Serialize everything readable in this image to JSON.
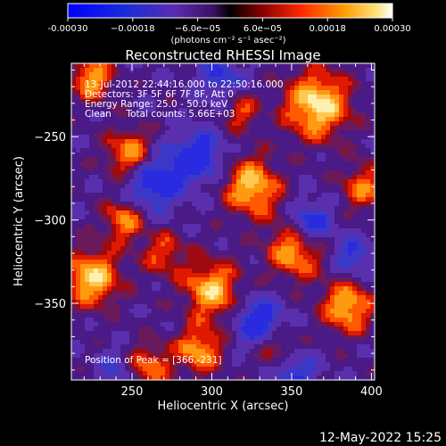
{
  "chart_data": {
    "type": "heatmap",
    "title": "Reconstructed RHESSI Image",
    "xlabel": "Heliocentric X (arcsec)",
    "ylabel": "Heliocentric Y (arcsec)",
    "xlim": [
      212,
      402
    ],
    "ylim": [
      -396,
      -206
    ],
    "x_ticks": [
      250,
      300,
      350,
      400
    ],
    "y_ticks": [
      -250,
      -300,
      -350
    ],
    "x_tick_labels": [
      "250",
      "300",
      "350",
      "400"
    ],
    "y_tick_labels": [
      "−250",
      "−300",
      "−350"
    ],
    "colorbar": {
      "range": [
        -0.0003,
        0.0003
      ],
      "tick_labels": [
        "-0.00030",
        "−0.00018",
        "−6.0e−05",
        "6.0e−05",
        "0.00018",
        "0.00030"
      ],
      "unit_label": "(photons cm⁻² s⁻¹ asec⁻²)"
    },
    "annotations": {
      "time_range": "13-Jul-2012 22:44:16.000 to 22:50:16.000",
      "detectors": "Detectors: 3F 5F 6F 7F 8F, Att 0",
      "energy": "Energy Range: 25.0 - 50.0 keV",
      "method": "Clean     Total counts: 5.66E+03",
      "peak": "Position of Peak = [366,-231]"
    },
    "grid": false,
    "footer_timestamp": "12-May-2022 15:25"
  }
}
